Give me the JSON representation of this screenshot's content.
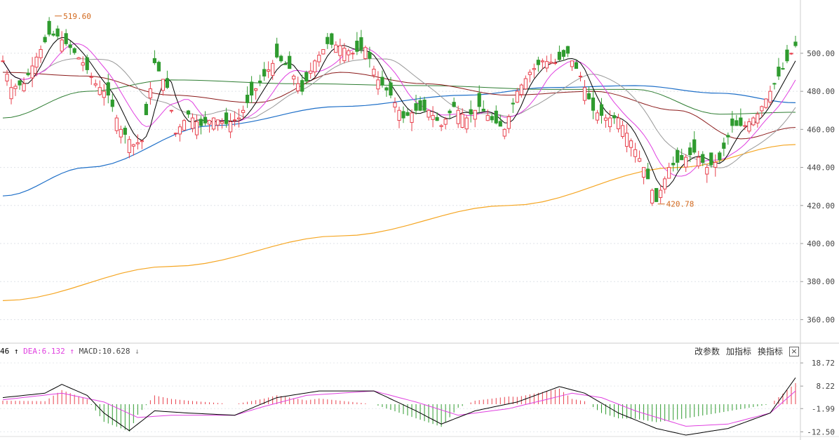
{
  "chart_data": [
    {
      "type": "candlestick",
      "ylim": [
        348,
        528
      ],
      "yticks": [
        "500.00",
        "480.00",
        "460.00",
        "440.00",
        "420.00",
        "400.00",
        "380.00",
        "360.00"
      ],
      "ytick_values": [
        500,
        480,
        460,
        440,
        420,
        400,
        380,
        360
      ],
      "annotations": [
        {
          "label": "519.60",
          "value": 519.6,
          "bar_index": 12
        },
        {
          "label": "420.78",
          "value": 420.78,
          "bar_index": 155
        }
      ],
      "colors": {
        "up": "#e8414d",
        "down": "#2f9b2f",
        "ma5": "#000000",
        "ma10": "#e040e0",
        "ma20": "#999999",
        "ma30": "#8b1a1a",
        "ma60": "#2e7d32",
        "ma120": "#1e6fc8",
        "ma250": "#f5a623"
      },
      "ohlc_anchor_close": [
        {
          "i": 0,
          "c": 496
        },
        {
          "i": 2,
          "c": 482
        },
        {
          "i": 5,
          "c": 484
        },
        {
          "i": 8,
          "c": 498
        },
        {
          "i": 11,
          "c": 510
        },
        {
          "i": 13,
          "c": 509
        },
        {
          "i": 16,
          "c": 503
        },
        {
          "i": 19,
          "c": 495
        },
        {
          "i": 22,
          "c": 484
        },
        {
          "i": 25,
          "c": 478
        },
        {
          "i": 28,
          "c": 460
        },
        {
          "i": 31,
          "c": 452
        },
        {
          "i": 33,
          "c": 454
        },
        {
          "i": 36,
          "c": 495
        },
        {
          "i": 39,
          "c": 482
        },
        {
          "i": 41,
          "c": 458
        },
        {
          "i": 44,
          "c": 468
        },
        {
          "i": 47,
          "c": 462
        },
        {
          "i": 50,
          "c": 466
        },
        {
          "i": 53,
          "c": 463
        },
        {
          "i": 56,
          "c": 466
        },
        {
          "i": 59,
          "c": 478
        },
        {
          "i": 62,
          "c": 488
        },
        {
          "i": 65,
          "c": 498
        },
        {
          "i": 68,
          "c": 492
        },
        {
          "i": 71,
          "c": 480
        },
        {
          "i": 74,
          "c": 496
        },
        {
          "i": 77,
          "c": 505
        },
        {
          "i": 80,
          "c": 504
        },
        {
          "i": 83,
          "c": 500
        },
        {
          "i": 86,
          "c": 503
        },
        {
          "i": 89,
          "c": 486
        },
        {
          "i": 92,
          "c": 478
        },
        {
          "i": 95,
          "c": 466
        },
        {
          "i": 98,
          "c": 470
        },
        {
          "i": 101,
          "c": 470
        },
        {
          "i": 104,
          "c": 462
        },
        {
          "i": 107,
          "c": 472
        },
        {
          "i": 110,
          "c": 466
        },
        {
          "i": 113,
          "c": 472
        },
        {
          "i": 116,
          "c": 465
        },
        {
          "i": 119,
          "c": 460
        },
        {
          "i": 122,
          "c": 480
        },
        {
          "i": 125,
          "c": 490
        },
        {
          "i": 128,
          "c": 496
        },
        {
          "i": 131,
          "c": 495
        },
        {
          "i": 134,
          "c": 500
        },
        {
          "i": 137,
          "c": 488
        },
        {
          "i": 140,
          "c": 470
        },
        {
          "i": 143,
          "c": 466
        },
        {
          "i": 146,
          "c": 466
        },
        {
          "i": 149,
          "c": 454
        },
        {
          "i": 152,
          "c": 440
        },
        {
          "i": 155,
          "c": 422
        },
        {
          "i": 158,
          "c": 440
        },
        {
          "i": 161,
          "c": 444
        },
        {
          "i": 164,
          "c": 448
        },
        {
          "i": 167,
          "c": 440
        },
        {
          "i": 170,
          "c": 444
        },
        {
          "i": 173,
          "c": 462
        },
        {
          "i": 176,
          "c": 462
        },
        {
          "i": 179,
          "c": 468
        },
        {
          "i": 182,
          "c": 480
        },
        {
          "i": 185,
          "c": 492
        },
        {
          "i": 187,
          "c": 500
        },
        {
          "i": 188,
          "c": 504
        }
      ],
      "moving_averages": {
        "ma250": [
          [
            0,
            370
          ],
          [
            40,
            388
          ],
          [
            80,
            404
          ],
          [
            120,
            420
          ],
          [
            160,
            440
          ],
          [
            188,
            452
          ]
        ],
        "ma120": [
          [
            0,
            425
          ],
          [
            20,
            440
          ],
          [
            50,
            462
          ],
          [
            80,
            472
          ],
          [
            110,
            478
          ],
          [
            130,
            482
          ],
          [
            150,
            483
          ],
          [
            170,
            479
          ],
          [
            188,
            474
          ]
        ],
        "ma60": [
          [
            0,
            466
          ],
          [
            20,
            480
          ],
          [
            40,
            486
          ],
          [
            70,
            484
          ],
          [
            100,
            483
          ],
          [
            130,
            481
          ],
          [
            150,
            481
          ],
          [
            170,
            468
          ],
          [
            188,
            469
          ]
        ],
        "ma30": [
          [
            0,
            490
          ],
          [
            20,
            488
          ],
          [
            40,
            478
          ],
          [
            60,
            474
          ],
          [
            80,
            490
          ],
          [
            100,
            484
          ],
          [
            120,
            478
          ],
          [
            140,
            480
          ],
          [
            160,
            470
          ],
          [
            175,
            455
          ],
          [
            188,
            461
          ]
        ]
      }
    },
    {
      "type": "macd",
      "ylim": [
        -14,
        21
      ],
      "yticks": [
        "18.72",
        "8.22",
        "-1.99",
        "-12.50"
      ],
      "ytick_values": [
        18.72,
        8.22,
        -1.99,
        -12.5
      ],
      "legend": {
        "dif_partial": "46",
        "dea_label": "DEA:6.132",
        "macd_label": "MACD:10.628",
        "dif_arrow": "↑",
        "dea_arrow": "↑",
        "macd_arrow": "↓"
      },
      "colors": {
        "dif": "#000000",
        "dea": "#e040e0",
        "pos": "#e8414d",
        "neg": "#2f9b2f"
      },
      "dif": [
        [
          0,
          3
        ],
        [
          10,
          5
        ],
        [
          14,
          9
        ],
        [
          20,
          4
        ],
        [
          24,
          -4
        ],
        [
          30,
          -12
        ],
        [
          36,
          -3
        ],
        [
          44,
          -4
        ],
        [
          55,
          -5
        ],
        [
          65,
          3
        ],
        [
          75,
          6
        ],
        [
          88,
          6
        ],
        [
          98,
          -3
        ],
        [
          104,
          -9
        ],
        [
          112,
          -3
        ],
        [
          122,
          1
        ],
        [
          132,
          8
        ],
        [
          138,
          5
        ],
        [
          146,
          -4
        ],
        [
          155,
          -11
        ],
        [
          162,
          -14
        ],
        [
          172,
          -11
        ],
        [
          182,
          -4
        ],
        [
          188,
          12
        ]
      ],
      "dea": [
        [
          0,
          2
        ],
        [
          14,
          5
        ],
        [
          24,
          1
        ],
        [
          32,
          -6
        ],
        [
          40,
          -5
        ],
        [
          55,
          -5
        ],
        [
          62,
          -1
        ],
        [
          72,
          4
        ],
        [
          88,
          6
        ],
        [
          98,
          1
        ],
        [
          108,
          -5
        ],
        [
          120,
          -2
        ],
        [
          135,
          5
        ],
        [
          142,
          3
        ],
        [
          150,
          -3
        ],
        [
          162,
          -10
        ],
        [
          172,
          -9
        ],
        [
          182,
          -4
        ],
        [
          188,
          6
        ]
      ]
    }
  ],
  "controls": {
    "params": "改参数",
    "add": "加指标",
    "switch": "换指标",
    "close": "×"
  }
}
